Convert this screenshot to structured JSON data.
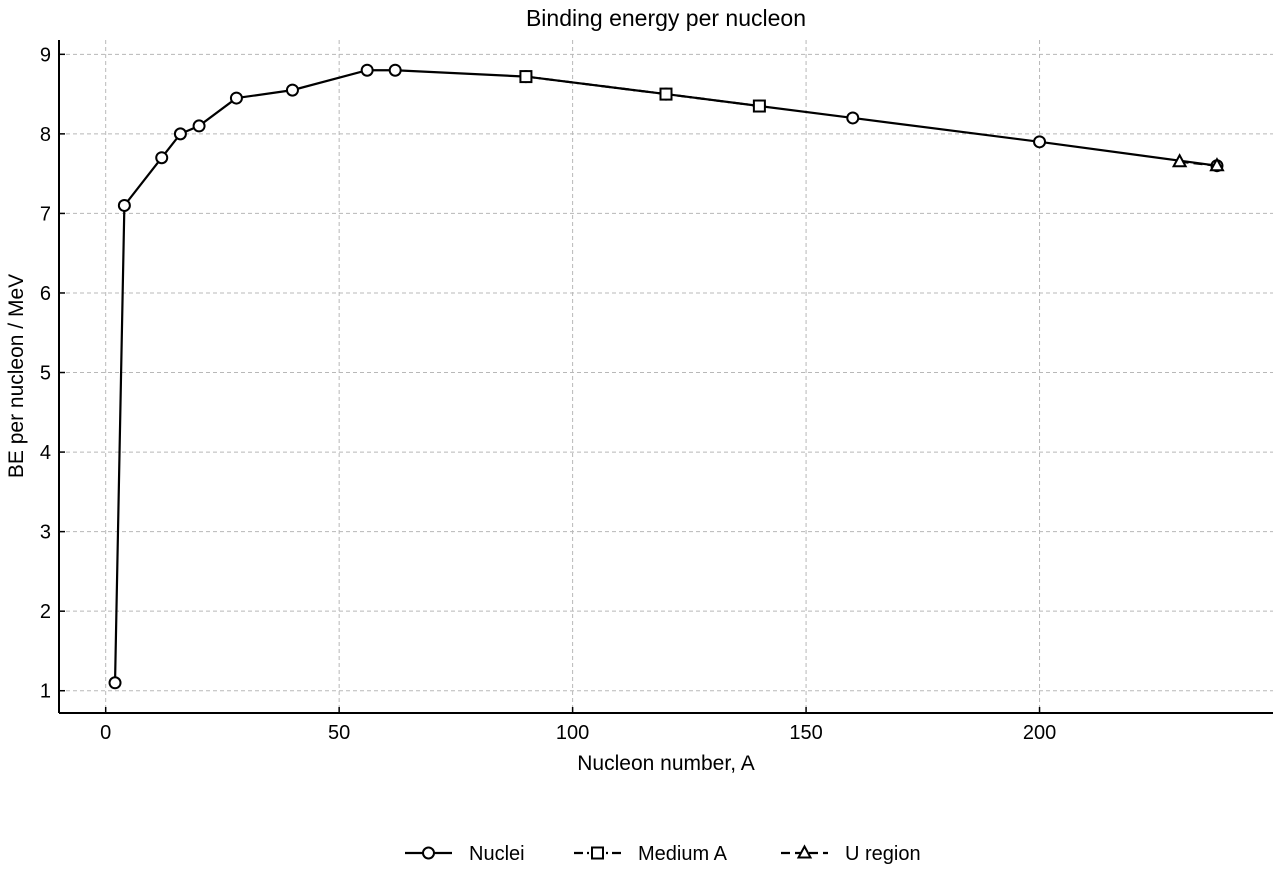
{
  "chart_data": {
    "type": "line",
    "title": "Binding energy per nucleon",
    "xlabel": "Nucleon number, A",
    "ylabel": "BE per nucleon / MeV",
    "xlim": [
      -10,
      250
    ],
    "ylim": [
      0.72,
      9.18
    ],
    "xticks": [
      0,
      50,
      100,
      150,
      200
    ],
    "yticks": [
      1,
      2,
      3,
      4,
      5,
      6,
      7,
      8,
      9
    ],
    "grid": true,
    "legend_position": "bottom-center",
    "series": [
      {
        "name": "Nuclei",
        "marker": "circle",
        "dash": "solid",
        "x": [
          2,
          4,
          12,
          16,
          20,
          28,
          40,
          56,
          62,
          90,
          120,
          140,
          160,
          200,
          238
        ],
        "y": [
          1.1,
          7.1,
          7.7,
          8.0,
          8.1,
          8.45,
          8.55,
          8.8,
          8.8,
          8.72,
          8.5,
          8.35,
          8.2,
          7.9,
          7.6
        ]
      },
      {
        "name": "Medium A",
        "marker": "square",
        "dash": "dashdot",
        "x": [
          90,
          120,
          140
        ],
        "y": [
          8.72,
          8.5,
          8.35
        ]
      },
      {
        "name": "U region",
        "marker": "triangle",
        "dash": "dashed",
        "x": [
          230,
          238
        ],
        "y": [
          7.65,
          7.6
        ]
      }
    ]
  }
}
